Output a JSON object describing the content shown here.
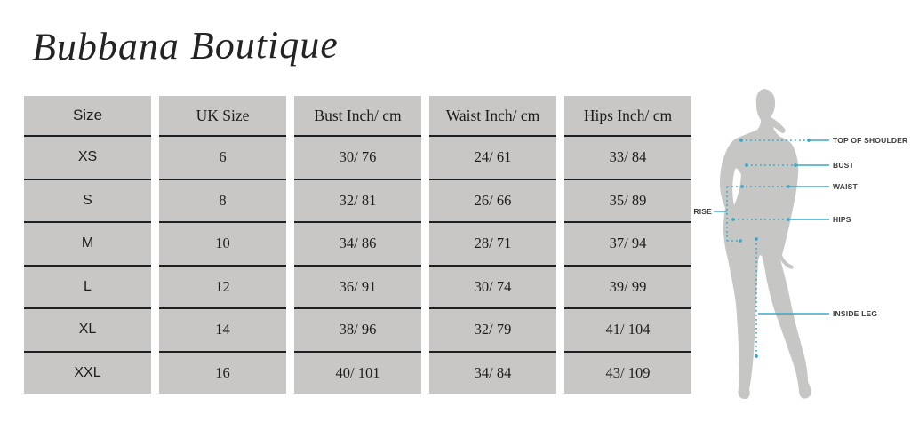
{
  "page": {
    "background": "#ffffff"
  },
  "brand": {
    "title": "Bubbana Boutique"
  },
  "size_chart": {
    "columns": [
      "Size",
      "UK Size",
      "Bust Inch/ cm",
      "Waist Inch/ cm",
      "Hips Inch/ cm"
    ],
    "rows": [
      [
        "XS",
        "6",
        "30/ 76",
        "24/ 61",
        "33/ 84"
      ],
      [
        "S",
        "8",
        "32/ 81",
        "26/ 66",
        "35/ 89"
      ],
      [
        "M",
        "10",
        "34/ 86",
        "28/ 71",
        "37/ 94"
      ],
      [
        "L",
        "12",
        "36/ 91",
        "30/ 74",
        "39/ 99"
      ],
      [
        "XL",
        "14",
        "38/ 96",
        "32/ 79",
        "41/ 104"
      ],
      [
        "XXL",
        "16",
        "40/ 101",
        "34/ 84",
        "43/ 109"
      ]
    ],
    "cell_bg": "#c8c7c5",
    "divider_color": "#1f1f1f",
    "text_color": "#1d1d1b"
  },
  "measurement_diagram": {
    "labels": {
      "top_of_shoulder": "TOP OF SHOULDER",
      "bust": "BUST",
      "waist": "WAIST",
      "rise": "RISE",
      "hips": "HIPS",
      "inside_leg": "INSIDE LEG"
    },
    "line_color": "#3aa9c6",
    "silhouette_color": "#c6c6c5",
    "label_color": "#3c3c3c"
  }
}
